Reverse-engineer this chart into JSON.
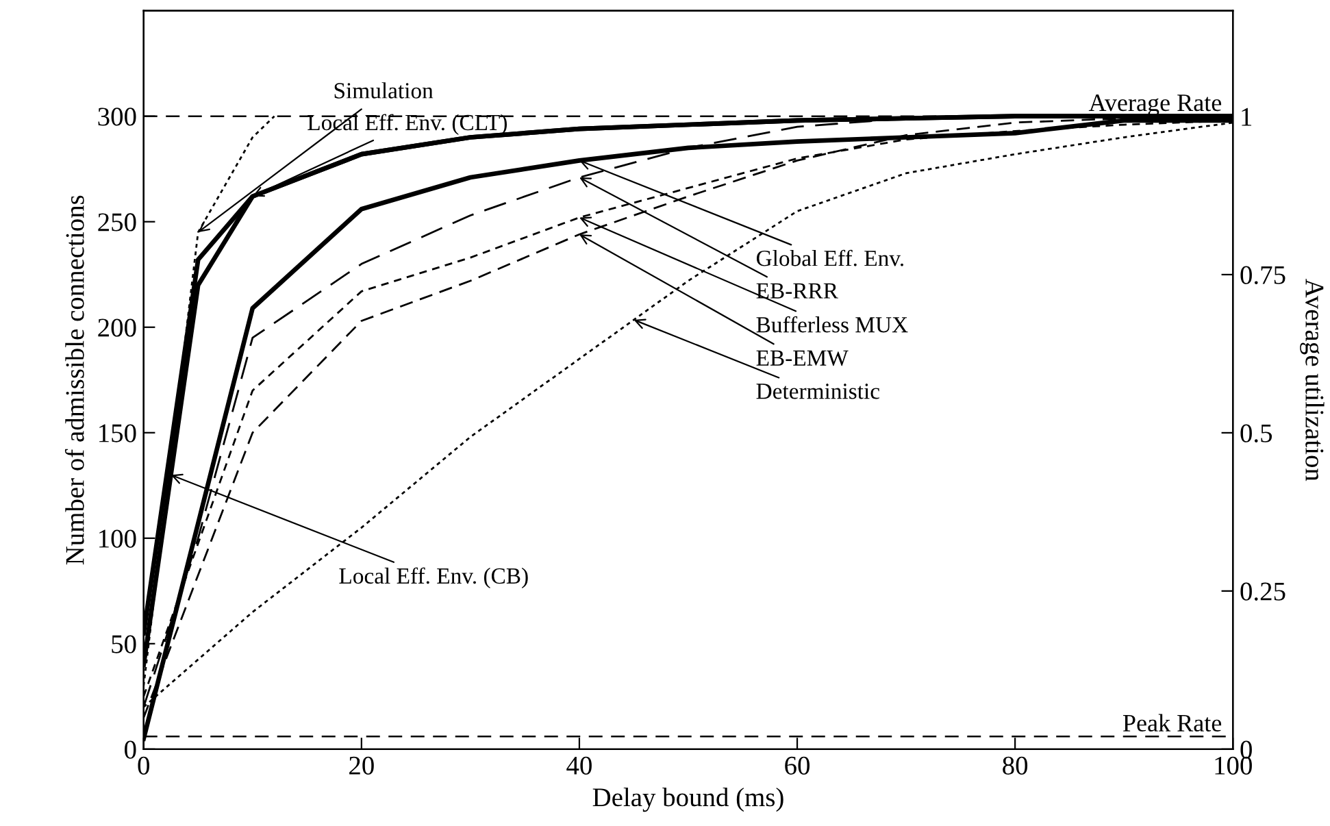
{
  "chart_data": {
    "type": "line",
    "xlabel": "Delay bound (ms)",
    "ylabel": "Number of admissible connections",
    "y2label": "Average utilization",
    "xlim": [
      0,
      100
    ],
    "xticks": [
      0,
      20,
      40,
      60,
      80,
      100
    ],
    "ylim": [
      0,
      350
    ],
    "yticks": [
      0,
      50,
      100,
      150,
      200,
      250,
      300
    ],
    "y2lim": [
      0,
      1.167
    ],
    "y2ticks": [
      0,
      0.25,
      0.5,
      0.75,
      1
    ],
    "grid": false,
    "legend": false,
    "series": [
      {
        "color": "#000000",
        "line_style": "dotted",
        "x": [
          0,
          5,
          10,
          12
        ],
        "values": [
          30,
          245,
          290,
          300
        ]
      },
      {
        "color": "#000000",
        "line_style": "solid",
        "x": [
          0,
          5,
          10,
          20,
          30,
          40,
          50,
          60,
          70,
          80,
          90,
          100
        ],
        "values": [
          55,
          232,
          262,
          282,
          290,
          294,
          296,
          298,
          299,
          300,
          300,
          300
        ]
      },
      {
        "color": "#000000",
        "line_style": "solid",
        "x": [
          0,
          5,
          10,
          20,
          30,
          40,
          50,
          60,
          70,
          80,
          90,
          100
        ],
        "values": [
          40,
          220,
          262,
          282,
          290,
          294,
          296,
          298,
          299,
          300,
          300,
          300
        ]
      },
      {
        "color": "#000000",
        "line_style": "solid",
        "x": [
          0,
          10,
          20,
          30,
          40,
          50,
          60,
          70,
          80,
          90,
          100
        ],
        "values": [
          5,
          209,
          256,
          271,
          279,
          285,
          288,
          290,
          292,
          298,
          298
        ]
      },
      {
        "color": "#000000",
        "line_style": "dashed",
        "x": [
          0,
          5,
          10,
          20,
          30,
          40,
          50,
          60,
          70,
          80,
          90,
          100
        ],
        "values": [
          20,
          100,
          195,
          230,
          253,
          271,
          285,
          295,
          299,
          300,
          300,
          300
        ]
      },
      {
        "color": "#000000",
        "line_style": "dashed",
        "x": [
          0,
          10,
          20,
          30,
          40,
          50,
          60,
          70,
          80,
          90,
          100
        ],
        "values": [
          25,
          170,
          217,
          233,
          252,
          266,
          280,
          289,
          293,
          296,
          298
        ]
      },
      {
        "color": "#000000",
        "line_style": "dashed",
        "x": [
          0,
          10,
          20,
          30,
          40,
          50,
          60,
          70,
          80,
          90,
          100
        ],
        "values": [
          15,
          150,
          203,
          222,
          244,
          262,
          279,
          291,
          297,
          299,
          300
        ]
      },
      {
        "color": "#000000",
        "line_style": "dotted",
        "x": [
          0,
          10,
          20,
          30,
          40,
          50,
          60,
          70,
          80,
          90,
          100
        ],
        "values": [
          20,
          65,
          105,
          148,
          185,
          222,
          255,
          273,
          282,
          290,
          297
        ]
      }
    ],
    "ref_lines": [
      {
        "axis": "y",
        "value": 300,
        "label": "Average Rate",
        "line_style": "dashed"
      },
      {
        "axis": "y",
        "value": 6,
        "label": "Peak Rate",
        "line_style": "dashed"
      }
    ],
    "annotations": [
      {
        "text": "Simulation",
        "x": 5,
        "y": 245
      },
      {
        "text": "Local Eff. Env. (CLT)",
        "x": 10,
        "y": 262
      },
      {
        "text": "Local Eff. Env. (CB)",
        "x": 2.5,
        "y": 130
      },
      {
        "text": "Global Eff. Env.",
        "x": 40,
        "y": 279
      },
      {
        "text": "EB-RRR",
        "x": 40,
        "y": 271
      },
      {
        "text": "Bufferless MUX",
        "x": 40,
        "y": 252
      },
      {
        "text": "EB-EMW",
        "x": 40,
        "y": 244
      },
      {
        "text": "Deterministic",
        "x": 45,
        "y": 203.5
      }
    ]
  }
}
